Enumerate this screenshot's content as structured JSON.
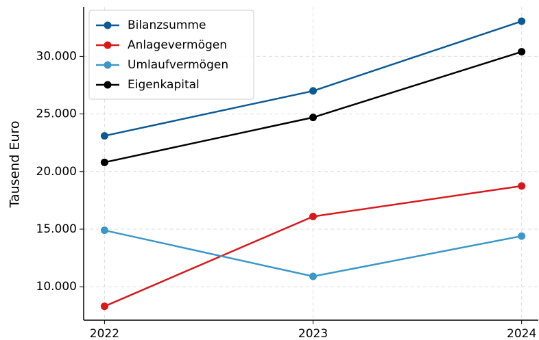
{
  "chart_data": {
    "type": "line",
    "y_label": "Tausend Euro",
    "x": [
      2022,
      2023,
      2024
    ],
    "series": [
      {
        "name": "Bilanzsumme",
        "color": "#0b5a93",
        "values": [
          23100,
          27000,
          33050
        ]
      },
      {
        "name": "Anlagevermögen",
        "color": "#d7191c",
        "values": [
          8300,
          16100,
          18750
        ]
      },
      {
        "name": "Umlaufvermögen",
        "color": "#3a98c9",
        "values": [
          14900,
          10900,
          14400
        ]
      },
      {
        "name": "Eigenkapital",
        "color": "#000000",
        "values": [
          20800,
          24700,
          30400
        ]
      }
    ],
    "xlim": [
      2021.9,
      2024.08
    ],
    "xticks": [
      2022,
      2023,
      2024
    ],
    "ylim": [
      7100,
      34300
    ],
    "yticks": [
      {
        "value": 10000,
        "label": "10.000"
      },
      {
        "value": 15000,
        "label": "15.000"
      },
      {
        "value": 20000,
        "label": "20.000"
      },
      {
        "value": 25000,
        "label": "25.000"
      },
      {
        "value": 30000,
        "label": "30.000"
      }
    ],
    "grid": true,
    "legend": "upper left"
  }
}
